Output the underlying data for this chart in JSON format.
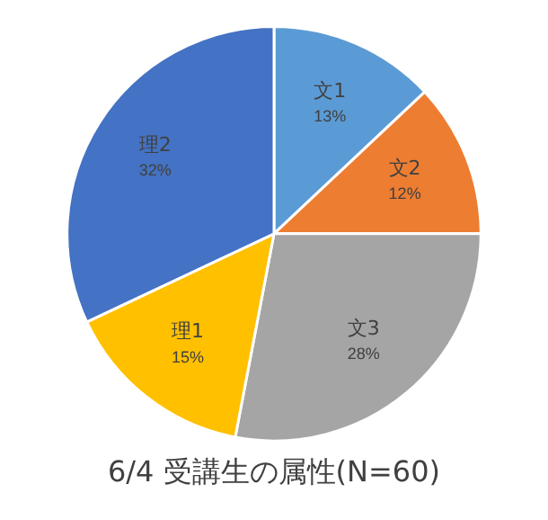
{
  "chart_data": {
    "type": "pie",
    "title": "6/4 受講生の属性(N=60)",
    "categories": [
      "文1",
      "文2",
      "文3",
      "理1",
      "理2"
    ],
    "values": [
      13,
      12,
      28,
      15,
      32
    ],
    "colors": [
      "#5b9bd5",
      "#ed7d31",
      "#a5a5a5",
      "#ffc000",
      "#4472c4"
    ],
    "value_labels": [
      "13%",
      "12%",
      "28%",
      "15%",
      "32%"
    ],
    "legend": false
  }
}
